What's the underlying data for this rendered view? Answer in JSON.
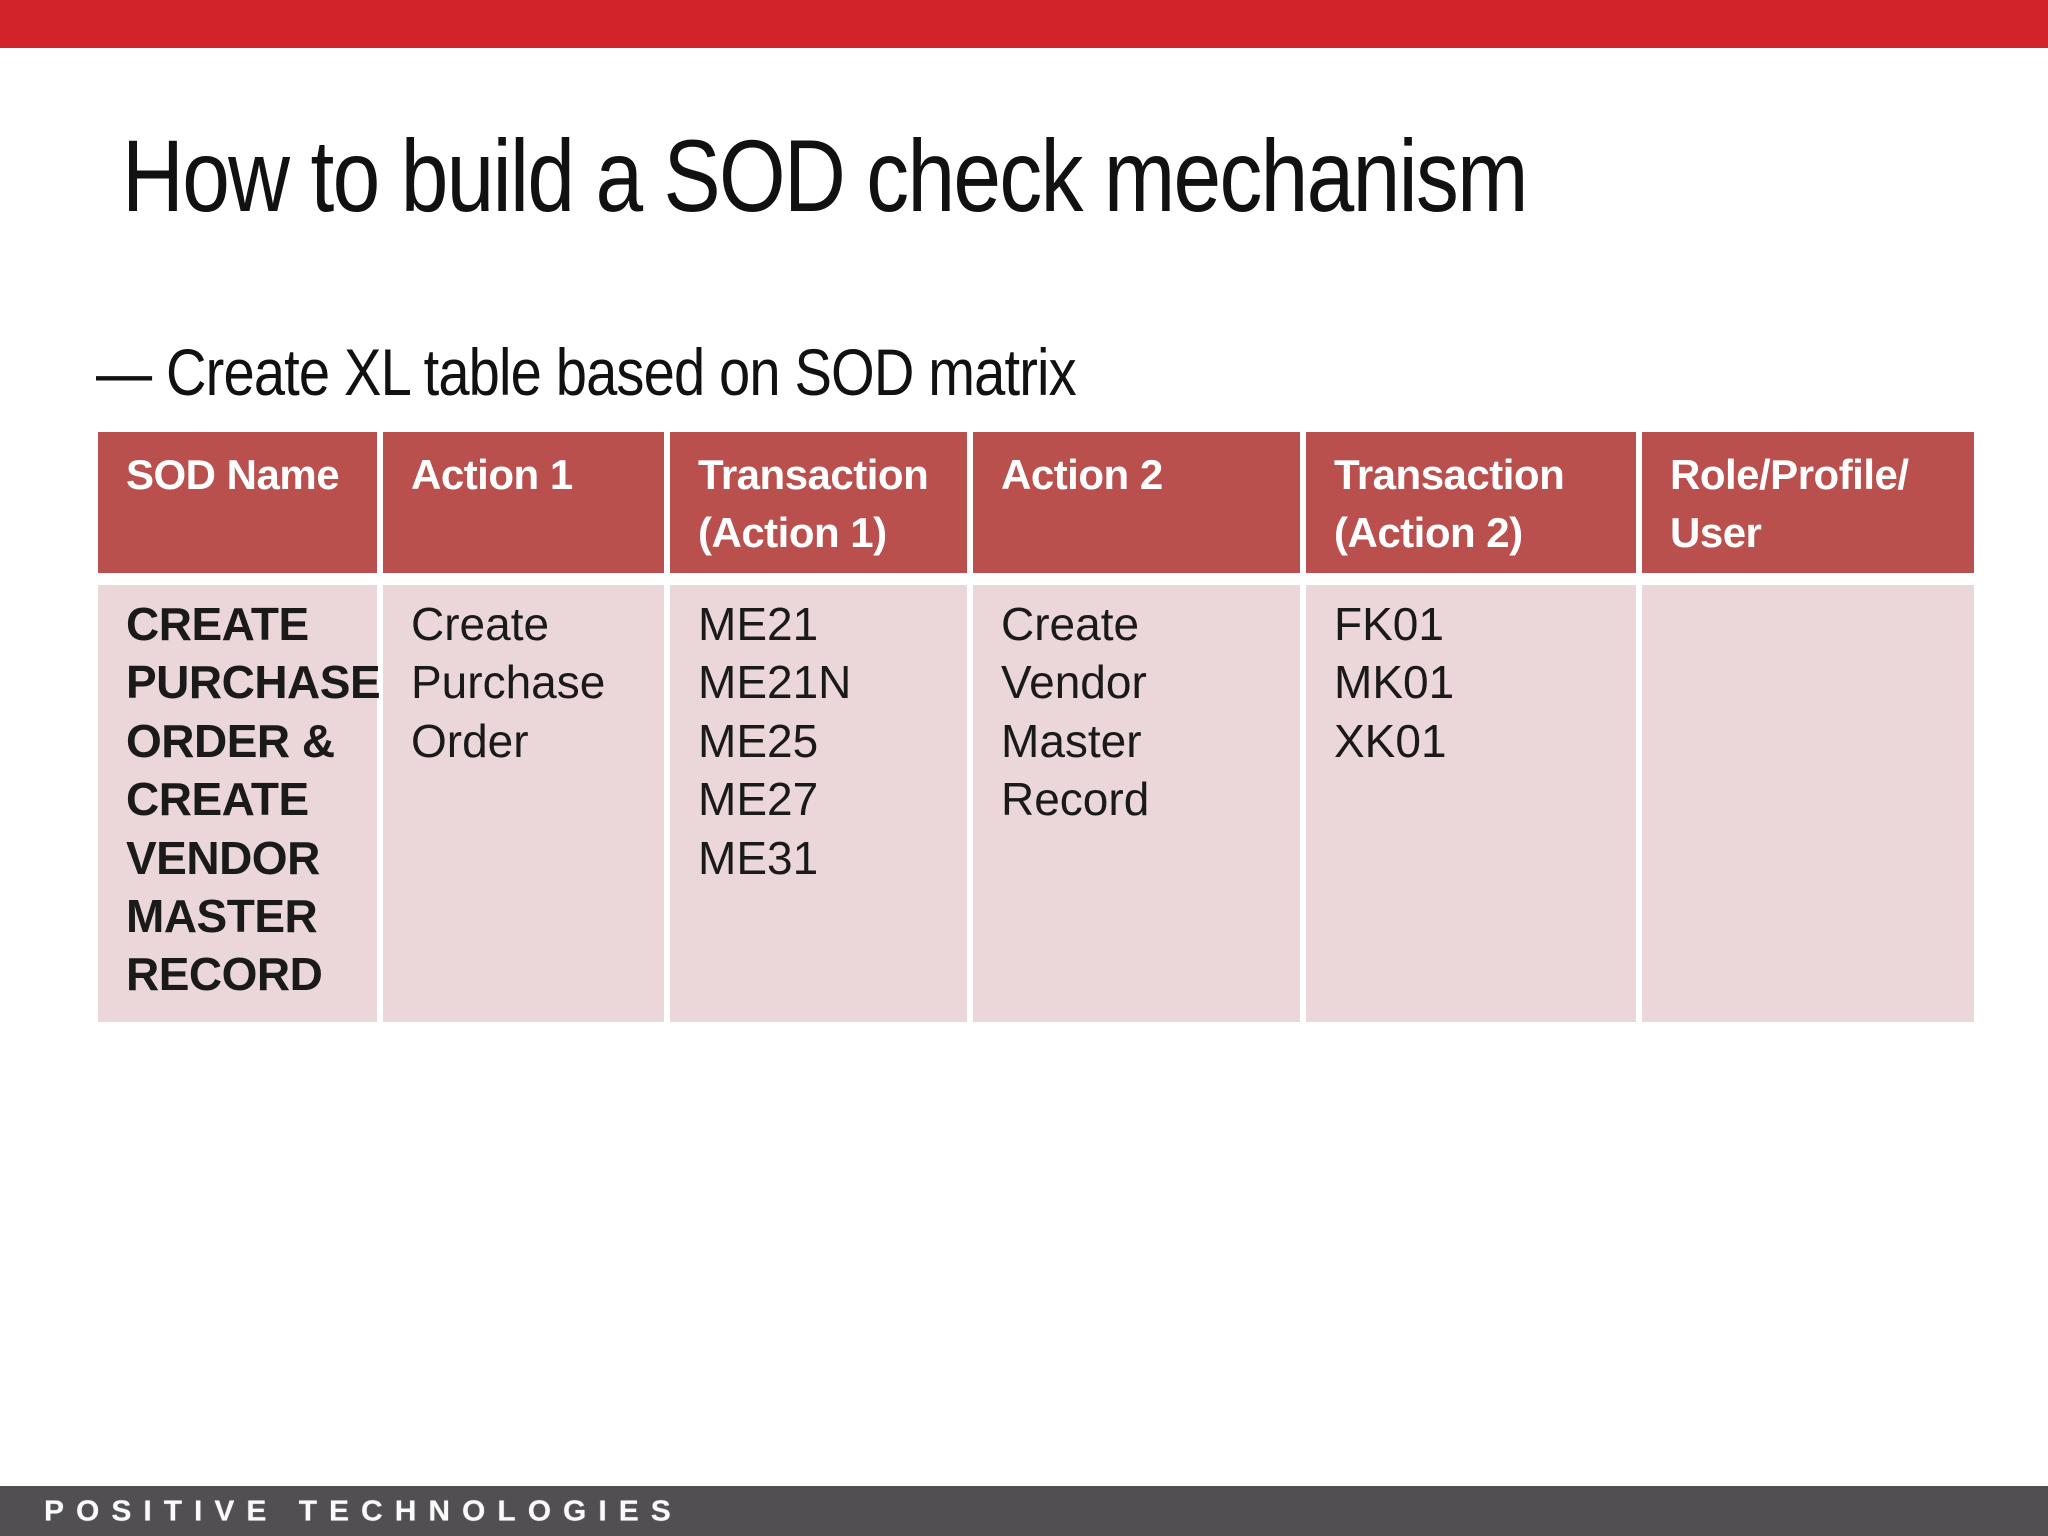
{
  "colors": {
    "slide_bg": "#FFFFFF",
    "accent_red": "#D2232A",
    "title_text": "#111111",
    "table_header_bg": "#B9504E",
    "table_header_text": "#FFFFFF",
    "table_body_bg": "#EBD7D9",
    "table_body_text": "#1A1A1A",
    "footer_bg": "#524F53",
    "footer_text": "#FAFAFA"
  },
  "slide": {
    "title": "How to build a SOD check mechanism",
    "bullet": "— Create XL table based on SOD matrix"
  },
  "table": {
    "headers": [
      [
        "SOD Name"
      ],
      [
        "Action 1"
      ],
      [
        "Transaction",
        "(Action 1)"
      ],
      [
        "Action 2"
      ],
      [
        "Transaction",
        "(Action 2)"
      ],
      [
        "Role/Profile/",
        "User"
      ]
    ],
    "rows": [
      {
        "cells": [
          [
            "CREATE",
            "PURCHASE",
            "ORDER &",
            "CREATE",
            "VENDOR",
            "MASTER",
            "RECORD"
          ],
          [
            "Create",
            "Purchase",
            "Order"
          ],
          [
            "ME21",
            "ME21N",
            "ME25",
            "ME27",
            "ME31"
          ],
          [
            "Create",
            "Vendor",
            "Master",
            "Record"
          ],
          [
            "FK01",
            "MK01",
            "XK01"
          ],
          []
        ]
      }
    ]
  },
  "footer": {
    "logo": "POSITIVE TECHNOLOGIES"
  }
}
